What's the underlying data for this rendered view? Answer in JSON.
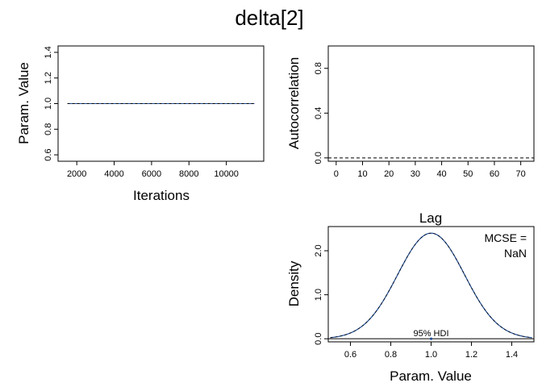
{
  "title": "delta[2]",
  "chart_data": [
    {
      "type": "line",
      "panel": "trace",
      "xlabel": "Iterations",
      "ylabel": "Param. Value",
      "xlim": [
        1000,
        12000
      ],
      "ylim": [
        0.55,
        1.45
      ],
      "x_ticks": [
        2000,
        4000,
        6000,
        8000,
        10000
      ],
      "x_tick_labels": [
        "2000",
        "4000",
        "6000",
        "8000",
        "10000"
      ],
      "y_ticks": [
        0.6,
        0.8,
        1.0,
        1.2,
        1.4
      ],
      "y_tick_labels": [
        "0.6",
        "0.8",
        "1.0",
        "1.2",
        "1.4"
      ],
      "series": [
        {
          "x": [
            1500,
            11500
          ],
          "y": [
            1.0,
            1.0
          ]
        }
      ]
    },
    {
      "type": "line",
      "panel": "autocorrelation",
      "xlabel": "Lag",
      "ylabel": "Autocorrelation",
      "xlim": [
        -3,
        75
      ],
      "ylim": [
        -0.03,
        1.0
      ],
      "x_ticks": [
        0,
        10,
        20,
        30,
        40,
        50,
        60,
        70
      ],
      "x_tick_labels": [
        "0",
        "10",
        "20",
        "30",
        "40",
        "50",
        "60",
        "70"
      ],
      "y_ticks": [
        0.0,
        0.4,
        0.8
      ],
      "y_tick_labels": [
        "0.0",
        "0.4",
        "0.8"
      ],
      "reference_line": 0.0
    },
    {
      "type": "line",
      "panel": "density",
      "xlabel": "Param. Value",
      "ylabel": "Density",
      "xlim": [
        0.49,
        1.51
      ],
      "ylim": [
        -0.07,
        2.55
      ],
      "x_ticks": [
        0.6,
        0.8,
        1.0,
        1.2,
        1.4
      ],
      "x_tick_labels": [
        "0.6",
        "0.8",
        "1.0",
        "1.2",
        "1.4"
      ],
      "y_ticks": [
        0.0,
        1.0,
        2.0
      ],
      "y_tick_labels": [
        "0.0",
        "1.0",
        "2.0"
      ],
      "density_curve": {
        "x_min": 0.5,
        "x_max": 1.5,
        "peak_x": 1.0,
        "peak_y": 2.4,
        "spread": 0.166
      },
      "hdi_label": "95% HDI",
      "hdi_point": 1.0,
      "mcse_label": "MCSE =",
      "mcse_value": "NaN"
    }
  ]
}
